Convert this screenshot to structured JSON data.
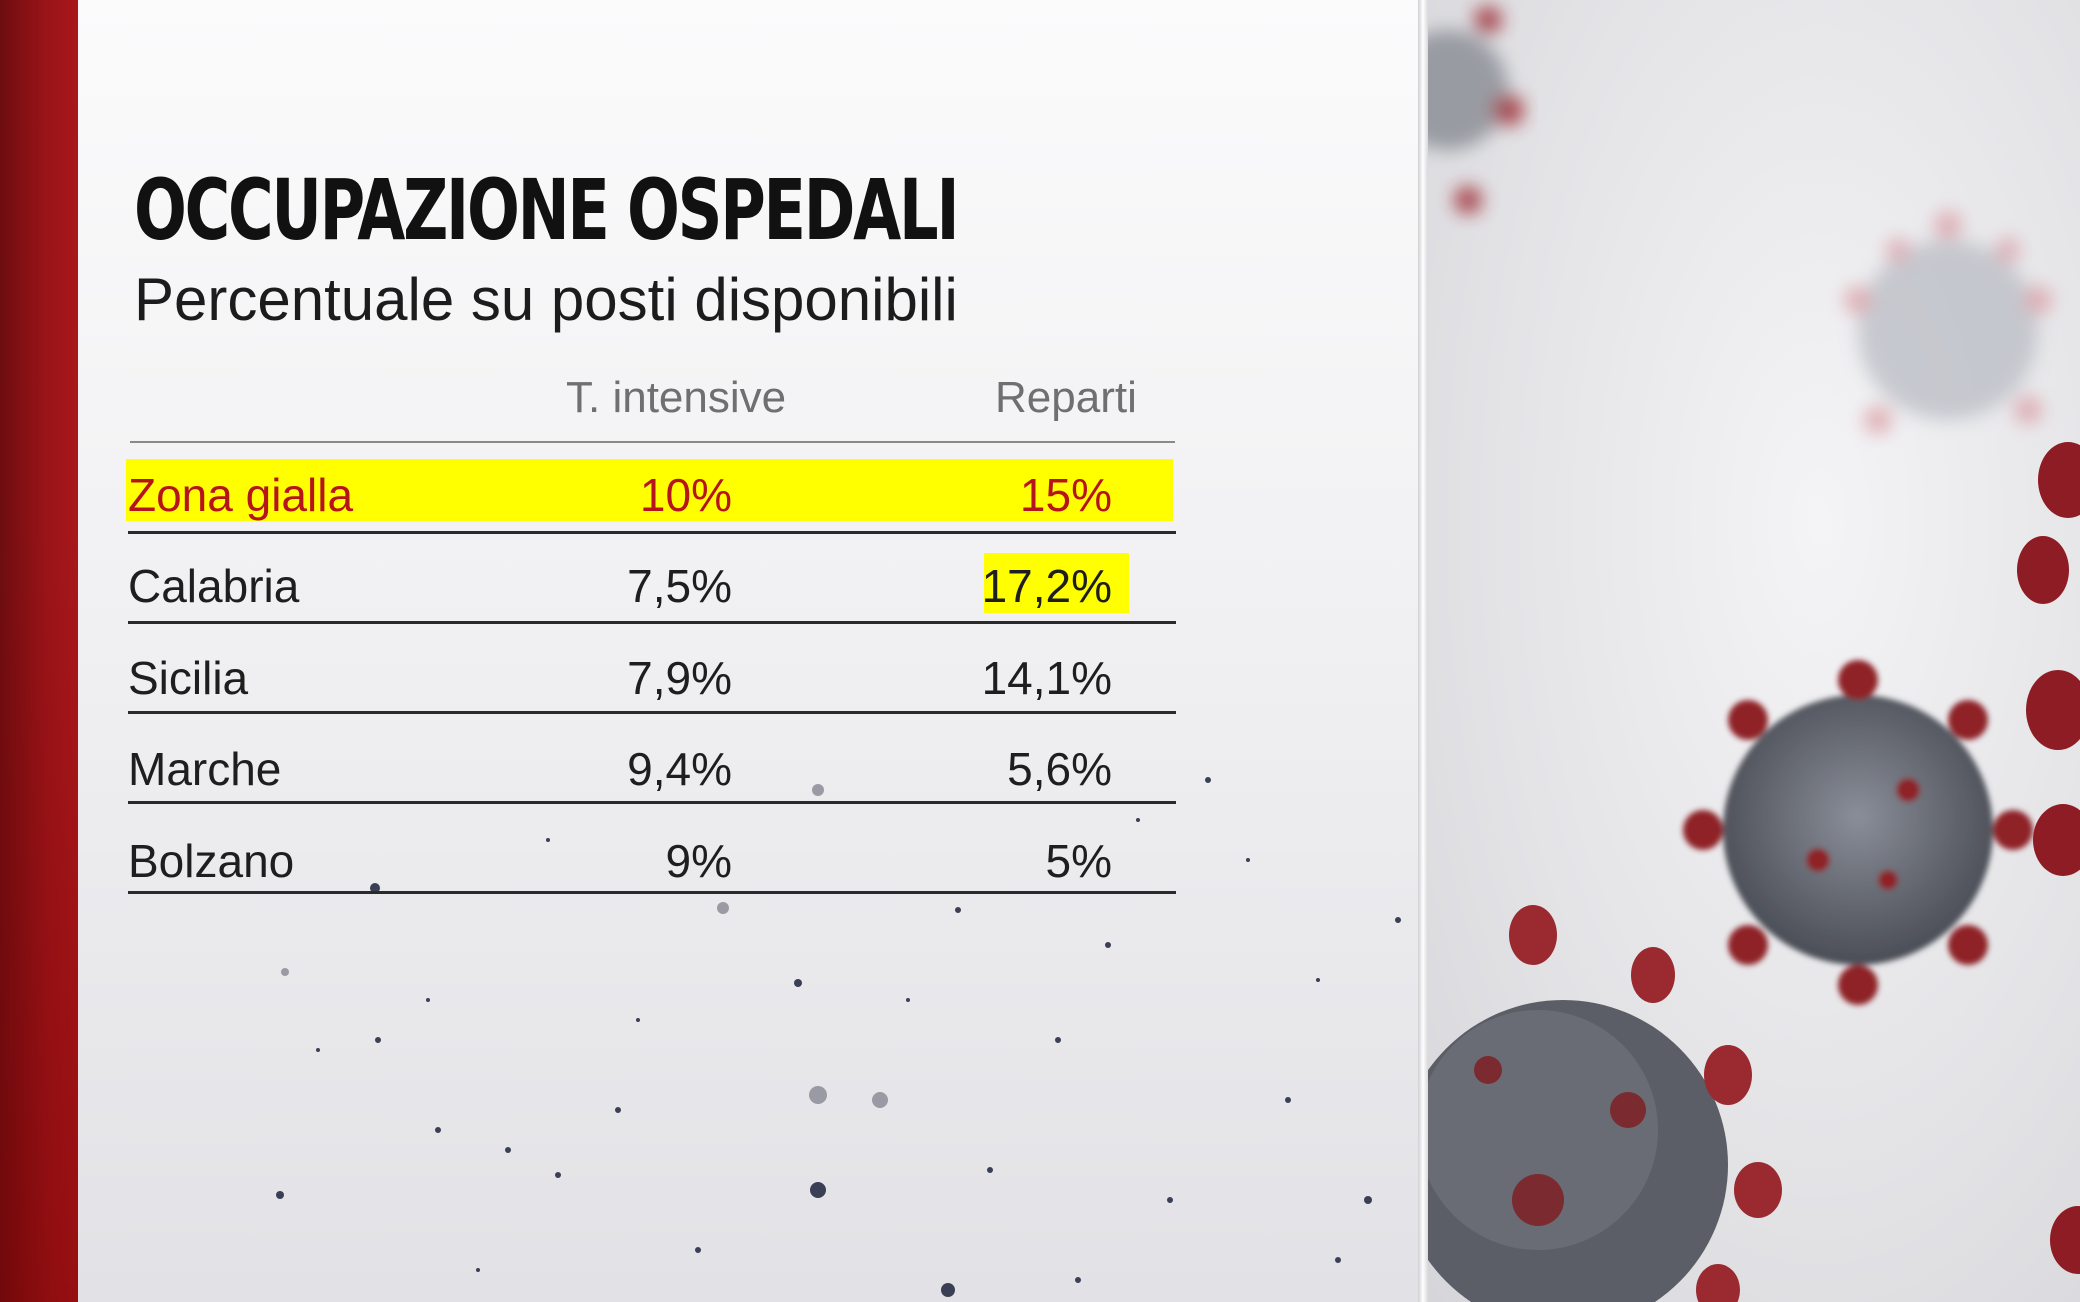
{
  "header": {
    "title": "OCCUPAZIONE OSPEDALI",
    "subtitle": "Percentuale su posti disponibili"
  },
  "table": {
    "columns": [
      "T. intensive",
      "Reparti"
    ],
    "rows": [
      {
        "name": "Zona gialla",
        "intensive": "10%",
        "reparti": "15%"
      },
      {
        "name": "Calabria",
        "intensive": "7,5%",
        "reparti": "17,2%"
      },
      {
        "name": "Sicilia",
        "intensive": "7,9%",
        "reparti": "14,1%"
      },
      {
        "name": "Marche",
        "intensive": "9,4%",
        "reparti": "5,6%"
      },
      {
        "name": "Bolzano",
        "intensive": "9%",
        "reparti": "5%"
      }
    ]
  },
  "colors": {
    "highlight": "#ffff00",
    "accent_red": "#b4141a",
    "strip_red": "#9a1418"
  },
  "decor": {
    "background_icon": "coronavirus-icon"
  }
}
